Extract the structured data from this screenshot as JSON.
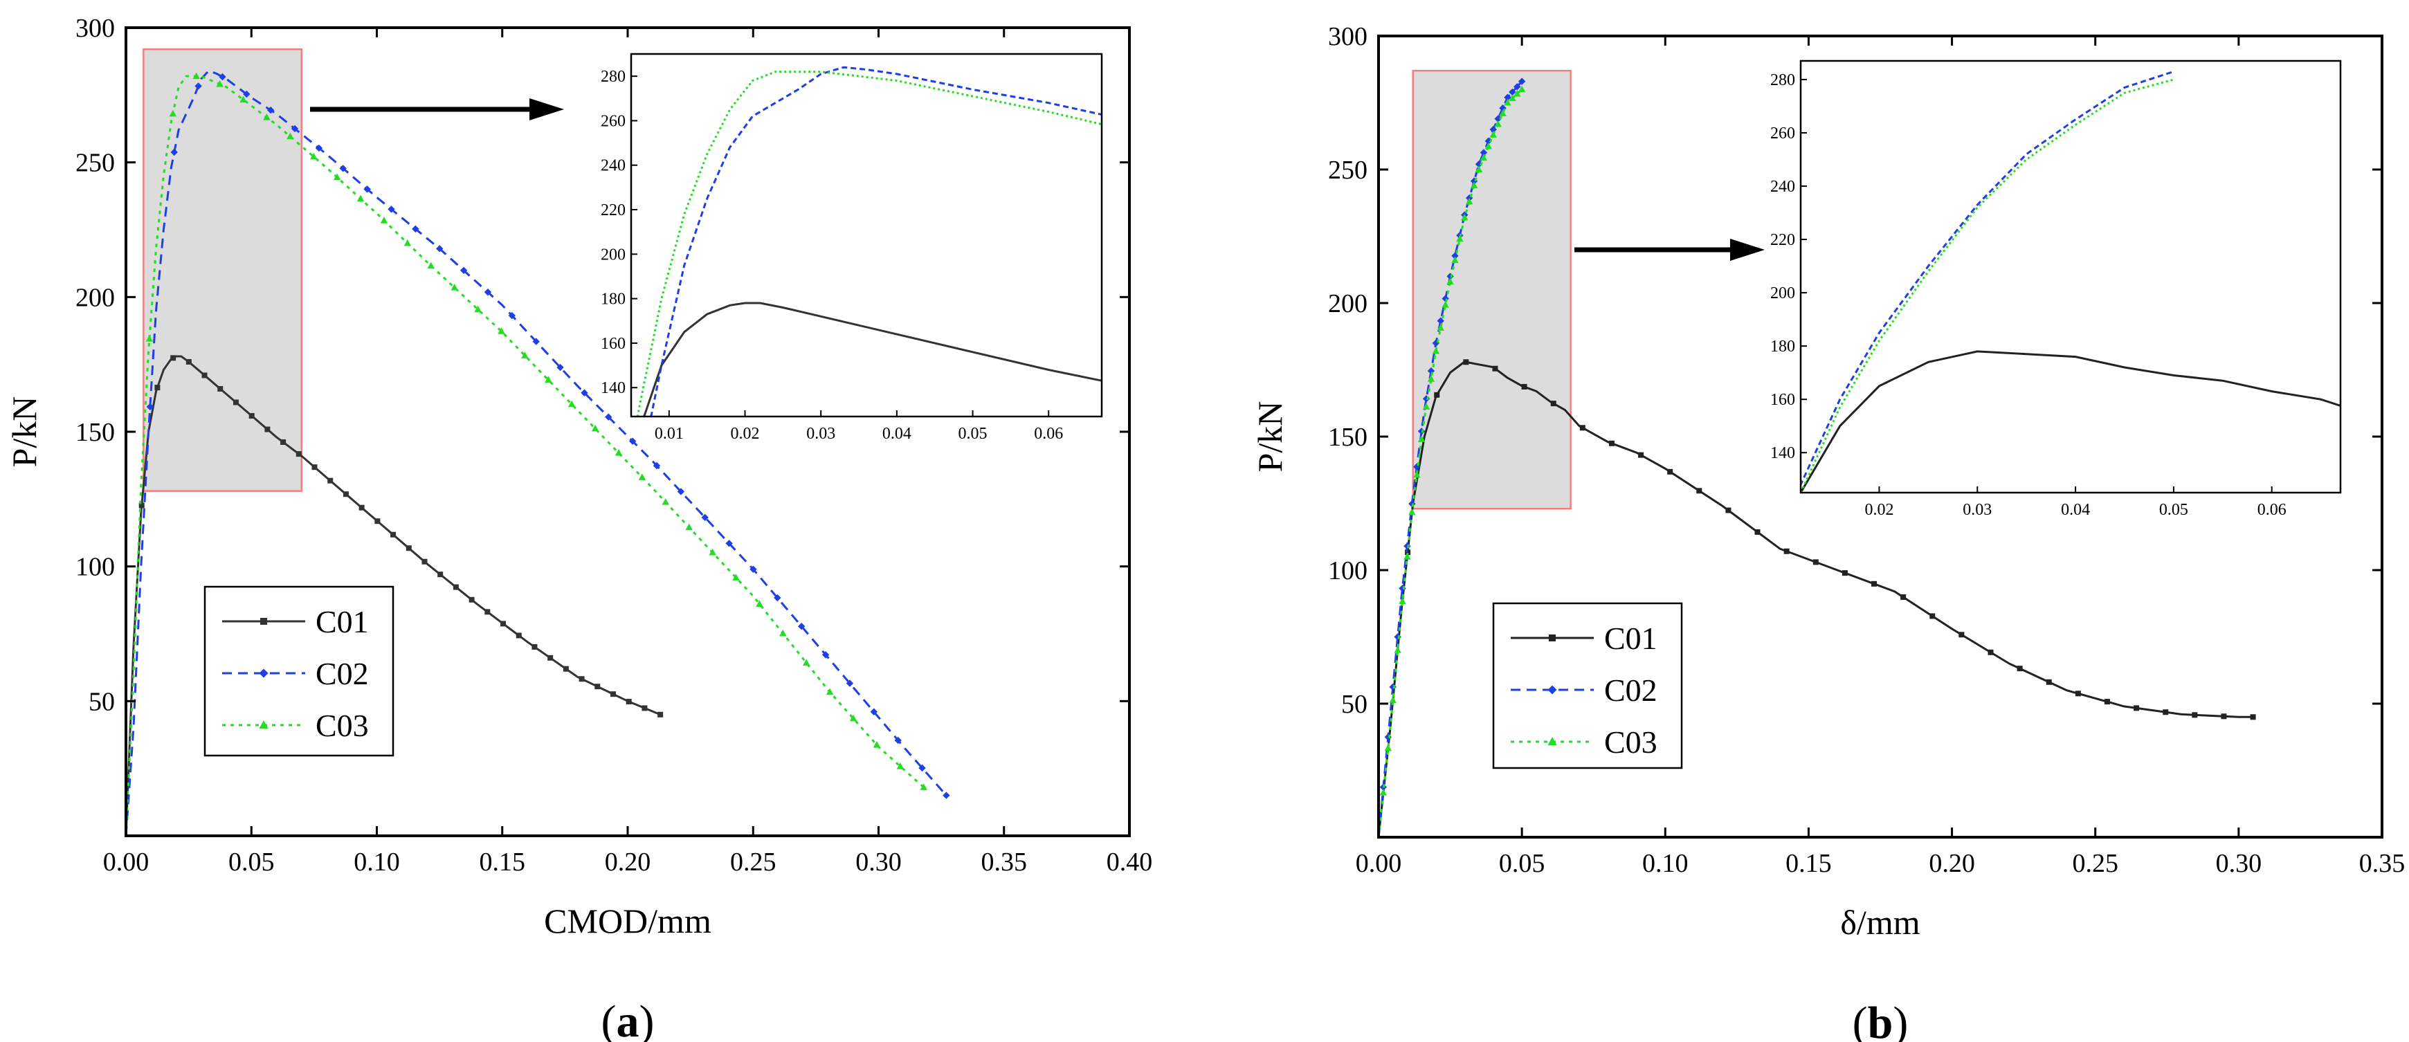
{
  "chart_data": [
    {
      "panel_label": "a",
      "type": "line",
      "xlabel": "CMOD/mm",
      "ylabel": "P/kN",
      "xlim": [
        0,
        0.4
      ],
      "ylim": [
        0,
        300
      ],
      "xticks": [
        "0.00",
        "0.05",
        "0.10",
        "0.15",
        "0.20",
        "0.25",
        "0.30",
        "0.35",
        "0.40"
      ],
      "yticks": [
        "50",
        "100",
        "150",
        "200",
        "250",
        "300"
      ],
      "legend": {
        "position": "bottom-left",
        "entries": [
          "C01",
          "C02",
          "C03"
        ]
      },
      "zoom_region": {
        "x": [
          0.007,
          0.07
        ],
        "y": [
          128,
          292
        ]
      },
      "inset": {
        "xlim": [
          0.005,
          0.067
        ],
        "ylim": [
          127,
          290
        ],
        "xticks": [
          "0.01",
          "0.02",
          "0.03",
          "0.04",
          "0.05",
          "0.06"
        ],
        "yticks": [
          "140",
          "160",
          "180",
          "200",
          "220",
          "240",
          "260",
          "280"
        ]
      },
      "series": [
        {
          "name": "C01",
          "color": "#333333",
          "style": "solid-square",
          "x": [
            0,
            0.003,
            0.006,
            0.009,
            0.012,
            0.015,
            0.018,
            0.02,
            0.022,
            0.025,
            0.03,
            0.04,
            0.05,
            0.06,
            0.07,
            0.08,
            0.09,
            0.1,
            0.12,
            0.14,
            0.16,
            0.18,
            0.2,
            0.213
          ],
          "y": [
            0,
            70,
            120,
            150,
            165,
            173,
            177,
            178,
            178,
            176,
            172,
            164,
            156,
            148,
            141,
            133,
            125,
            117,
            101,
            86,
            72,
            59,
            50,
            45
          ]
        },
        {
          "name": "C02",
          "color": "#1f3fe6",
          "style": "dashed-diamond",
          "x": [
            0,
            0.003,
            0.006,
            0.009,
            0.012,
            0.015,
            0.018,
            0.021,
            0.024,
            0.027,
            0.03,
            0.033,
            0.036,
            0.04,
            0.05,
            0.06,
            0.08,
            0.1,
            0.125,
            0.15,
            0.18,
            0.21,
            0.25,
            0.28,
            0.31,
            0.327
          ],
          "y": [
            0,
            40,
            100,
            150,
            195,
            225,
            248,
            262,
            268,
            274,
            281,
            284,
            283,
            281,
            274,
            268,
            253,
            237,
            218,
            197,
            167,
            139,
            99,
            66,
            33,
            15
          ]
        },
        {
          "name": "C03",
          "color": "#22dd22",
          "style": "dotted-triangle",
          "x": [
            0,
            0.003,
            0.006,
            0.009,
            0.012,
            0.015,
            0.018,
            0.021,
            0.024,
            0.027,
            0.03,
            0.035,
            0.04,
            0.05,
            0.06,
            0.08,
            0.1,
            0.12,
            0.15,
            0.18,
            0.21,
            0.25,
            0.28,
            0.3,
            0.318
          ],
          "y": [
            0,
            60,
            130,
            180,
            218,
            245,
            265,
            278,
            282,
            282,
            282,
            280,
            278,
            271,
            264,
            248,
            231,
            213,
            187,
            158,
            129,
            89,
            54,
            33,
            18
          ]
        }
      ]
    },
    {
      "panel_label": "b",
      "type": "line",
      "xlabel": "δ/mm",
      "ylabel": "P/kN",
      "xlim": [
        0,
        0.35
      ],
      "ylim": [
        0,
        300
      ],
      "xticks": [
        "0.00",
        "0.05",
        "0.10",
        "0.15",
        "0.20",
        "0.25",
        "0.30",
        "0.35"
      ],
      "yticks": [
        "50",
        "100",
        "150",
        "200",
        "250",
        "300"
      ],
      "legend": {
        "position": "bottom-left",
        "entries": [
          "C01",
          "C02",
          "C03"
        ]
      },
      "zoom_region": {
        "x": [
          0.012,
          0.067
        ],
        "y": [
          123,
          287
        ]
      },
      "inset": {
        "xlim": [
          0.012,
          0.067
        ],
        "ylim": [
          125,
          287
        ],
        "xticks": [
          "0.02",
          "0.03",
          "0.04",
          "0.05",
          "0.06"
        ],
        "yticks": [
          "140",
          "160",
          "180",
          "200",
          "220",
          "240",
          "260",
          "280"
        ]
      },
      "series": [
        {
          "name": "C01",
          "color": "#222222",
          "style": "solid-square",
          "x": [
            0,
            0.004,
            0.008,
            0.012,
            0.016,
            0.02,
            0.025,
            0.03,
            0.035,
            0.04,
            0.045,
            0.05,
            0.055,
            0.06,
            0.065,
            0.07,
            0.08,
            0.09,
            0.1,
            0.12,
            0.14,
            0.16,
            0.18,
            0.2,
            0.22,
            0.24,
            0.26,
            0.28,
            0.3,
            0.305
          ],
          "y": [
            0,
            40,
            85,
            125,
            150,
            165,
            174,
            178,
            177,
            176,
            172,
            169,
            167,
            163,
            160,
            154,
            148,
            144,
            138,
            124,
            108,
            100,
            92,
            78,
            65,
            55,
            49,
            46,
            45,
            45
          ]
        },
        {
          "name": "C02",
          "color": "#1f3fe6",
          "style": "dashed-diamond",
          "x": [
            0,
            0.004,
            0.008,
            0.012,
            0.016,
            0.02,
            0.025,
            0.03,
            0.035,
            0.04,
            0.045,
            0.05
          ],
          "y": [
            0,
            45,
            90,
            128,
            160,
            185,
            210,
            233,
            252,
            265,
            277,
            283
          ]
        },
        {
          "name": "C03",
          "color": "#22dd22",
          "style": "dotted-triangle",
          "x": [
            0,
            0.004,
            0.008,
            0.012,
            0.016,
            0.02,
            0.025,
            0.03,
            0.035,
            0.04,
            0.045,
            0.05
          ],
          "y": [
            0,
            40,
            85,
            125,
            157,
            182,
            208,
            232,
            250,
            263,
            275,
            280
          ]
        }
      ]
    }
  ]
}
